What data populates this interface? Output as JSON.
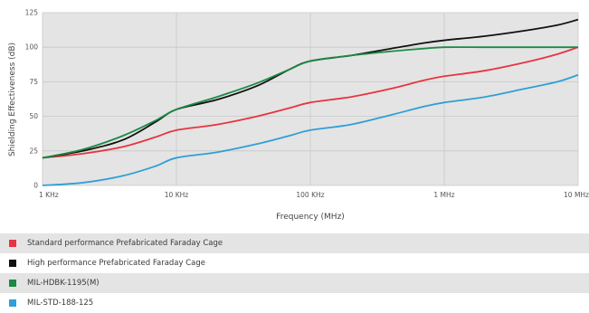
{
  "chart_data": {
    "type": "line",
    "xscale": "log",
    "x_ticks": [
      {
        "value": 0.001,
        "label": "1 KHz"
      },
      {
        "value": 0.01,
        "label": "10 KHz"
      },
      {
        "value": 0.1,
        "label": "100 KHz"
      },
      {
        "value": 1,
        "label": "1 MHz"
      },
      {
        "value": 10,
        "label": "10 MHz"
      }
    ],
    "xlabel": "Frequency (MHz)",
    "ylabel": "Shielding Effectiveness (dB)",
    "ylim": [
      0,
      125
    ],
    "yticks": [
      "0",
      "25",
      "50",
      "75",
      "100",
      "125"
    ],
    "grid": true,
    "legend_position": "bottom",
    "series": [
      {
        "name": "Standard performance Prefabricated Faraday Cage",
        "color": "#e8343f",
        "x": [
          0.001,
          0.002,
          0.004,
          0.007,
          0.01,
          0.02,
          0.04,
          0.07,
          0.1,
          0.2,
          0.4,
          0.7,
          1,
          2,
          4,
          7,
          10
        ],
        "y": [
          20,
          23,
          28,
          35,
          40,
          44,
          50,
          56,
          60,
          64,
          70,
          76,
          79,
          83,
          89,
          95,
          100
        ]
      },
      {
        "name": "High performance Prefabricated Faraday Cage",
        "color": "#111111",
        "x": [
          0.001,
          0.002,
          0.004,
          0.007,
          0.01,
          0.02,
          0.04,
          0.07,
          0.1,
          0.2,
          0.4,
          0.7,
          1,
          2,
          4,
          7,
          10
        ],
        "y": [
          20,
          25,
          33,
          46,
          55,
          62,
          72,
          84,
          90,
          94,
          99,
          103,
          105,
          108,
          112,
          116,
          120
        ]
      },
      {
        "name": "MIL-HDBK-1195(M)",
        "color": "#1a8a44",
        "x": [
          0.001,
          0.002,
          0.004,
          0.007,
          0.01,
          0.02,
          0.04,
          0.07,
          0.1,
          0.2,
          0.4,
          0.7,
          1,
          2,
          4,
          7,
          10
        ],
        "y": [
          20,
          26,
          36,
          47,
          55,
          64,
          74,
          84,
          90,
          94,
          97,
          99,
          100,
          100,
          100,
          100,
          100
        ]
      },
      {
        "name": "MIL-STD-188-125",
        "color": "#2f9fd6",
        "x": [
          0.001,
          0.002,
          0.004,
          0.007,
          0.01,
          0.02,
          0.04,
          0.07,
          0.1,
          0.2,
          0.4,
          0.7,
          1,
          2,
          4,
          7,
          10
        ],
        "y": [
          0,
          2,
          7,
          14,
          20,
          24,
          30,
          36,
          40,
          44,
          51,
          57,
          60,
          64,
          70,
          75,
          80
        ]
      }
    ]
  }
}
